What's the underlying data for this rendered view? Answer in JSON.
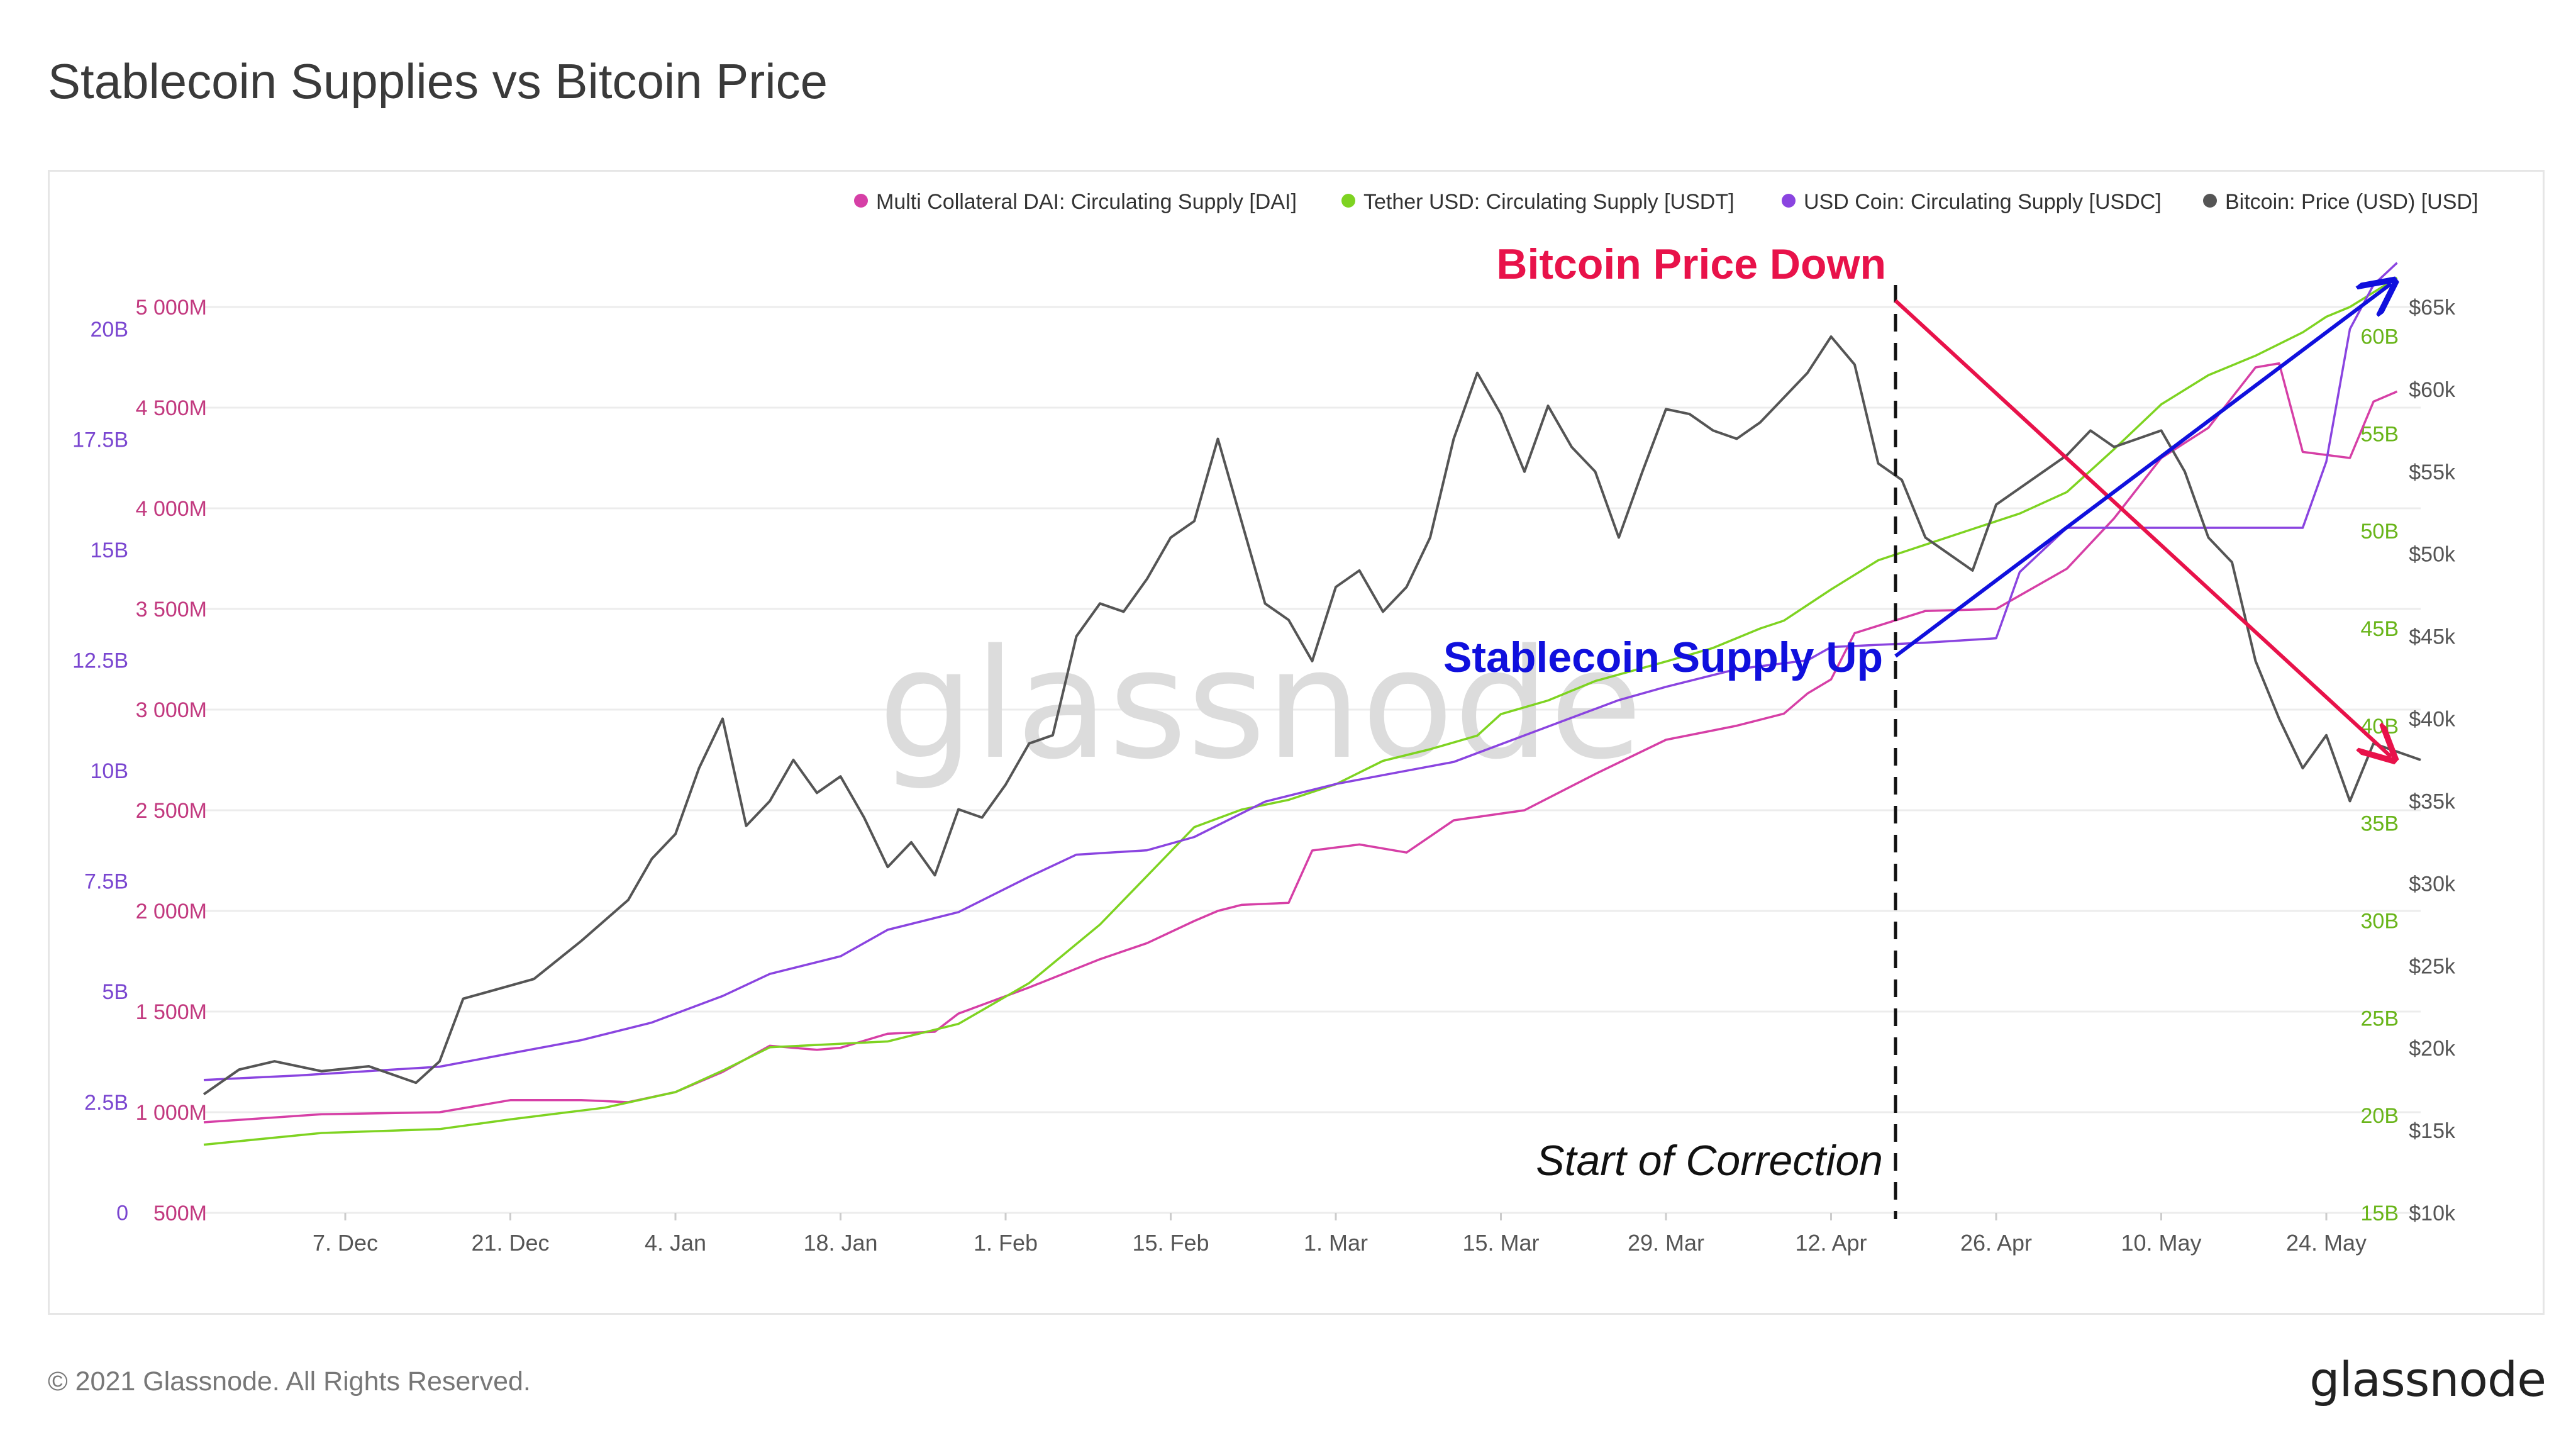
{
  "title": "Stablecoin Supplies vs Bitcoin Price",
  "footer": "© 2021 Glassnode. All Rights Reserved.",
  "brand": "glassnode",
  "watermark": "glassnode",
  "colors": {
    "dai": "#d63fa6",
    "usdt": "#7ed321",
    "usdc": "#8a44e0",
    "btc": "#555555",
    "red_annot": "#e8124a",
    "blue_annot": "#1010dd"
  },
  "annotations": {
    "price_down": "Bitcoin Price Down",
    "supply_up": "Stablecoin Supply Up",
    "correction": "Start of Correction"
  },
  "chart_data": {
    "type": "line",
    "title": "Stablecoin Supplies vs Bitcoin Price",
    "x_range": [
      "2020-11-25",
      "2021-05-27"
    ],
    "x_ticks": [
      "7. Dec",
      "21. Dec",
      "4. Jan",
      "18. Jan",
      "1. Feb",
      "15. Feb",
      "1. Mar",
      "15. Mar",
      "29. Mar",
      "12. Apr",
      "26. Apr",
      "10. May",
      "24. May"
    ],
    "x_tick_days": [
      12,
      26,
      40,
      54,
      68,
      82,
      96,
      110,
      124,
      138,
      152,
      166,
      180
    ],
    "axes": {
      "dai": {
        "ticks": [
          "500M",
          "1 000M",
          "1 500M",
          "2 000M",
          "2 500M",
          "3 000M",
          "3 500M",
          "4 000M",
          "4 500M",
          "5 000M"
        ],
        "range": [
          500,
          5000
        ],
        "unit": "M"
      },
      "usdc": {
        "ticks": [
          "0",
          "2.5B",
          "5B",
          "7.5B",
          "10B",
          "12.5B",
          "15B",
          "17.5B",
          "20B"
        ],
        "range": [
          0,
          20
        ],
        "unit": "B"
      },
      "usdt": {
        "ticks": [
          "15B",
          "20B",
          "25B",
          "30B",
          "35B",
          "40B",
          "45B",
          "50B",
          "55B",
          "60B"
        ],
        "range": [
          15,
          60
        ],
        "unit": "B"
      },
      "btc": {
        "ticks": [
          "$10k",
          "$15k",
          "$20k",
          "$25k",
          "$30k",
          "$35k",
          "$40k",
          "$45k",
          "$50k",
          "$55k",
          "$60k",
          "$65k"
        ],
        "range": [
          10000,
          65000
        ],
        "unit": "USD"
      }
    },
    "legend": [
      {
        "key": "dai",
        "label": "Multi Collateral DAI: Circulating Supply [DAI]"
      },
      {
        "key": "usdt",
        "label": "Tether USD: Circulating Supply [USDT]"
      },
      {
        "key": "usdc",
        "label": "USD Coin: Circulating Supply [USDC]"
      },
      {
        "key": "btc",
        "label": "Bitcoin: Price (USD) [USD]"
      }
    ],
    "series": [
      {
        "name": "Multi Collateral DAI: Circulating Supply [DAI]",
        "axis": "dai",
        "points": [
          [
            0,
            950
          ],
          [
            10,
            990
          ],
          [
            20,
            1000
          ],
          [
            26,
            1060
          ],
          [
            32,
            1060
          ],
          [
            36,
            1050
          ],
          [
            40,
            1100
          ],
          [
            44,
            1200
          ],
          [
            48,
            1330
          ],
          [
            52,
            1310
          ],
          [
            54,
            1320
          ],
          [
            58,
            1390
          ],
          [
            62,
            1400
          ],
          [
            64,
            1490
          ],
          [
            70,
            1620
          ],
          [
            76,
            1760
          ],
          [
            80,
            1840
          ],
          [
            84,
            1950
          ],
          [
            86,
            2000
          ],
          [
            88,
            2030
          ],
          [
            92,
            2040
          ],
          [
            94,
            2300
          ],
          [
            98,
            2330
          ],
          [
            102,
            2290
          ],
          [
            106,
            2450
          ],
          [
            112,
            2500
          ],
          [
            118,
            2680
          ],
          [
            124,
            2850
          ],
          [
            130,
            2920
          ],
          [
            134,
            2980
          ],
          [
            136,
            3080
          ],
          [
            138,
            3150
          ],
          [
            140,
            3380
          ],
          [
            146,
            3490
          ],
          [
            152,
            3500
          ],
          [
            158,
            3700
          ],
          [
            162,
            3950
          ],
          [
            166,
            4250
          ],
          [
            170,
            4400
          ],
          [
            174,
            4700
          ],
          [
            176,
            4720
          ],
          [
            178,
            4280
          ],
          [
            182,
            4250
          ],
          [
            184,
            4530
          ],
          [
            186,
            4580
          ]
        ]
      },
      {
        "name": "Tether USD: Circulating Supply [USDT]",
        "axis": "usdt",
        "points": [
          [
            0,
            18.5
          ],
          [
            10,
            19.1
          ],
          [
            20,
            19.3
          ],
          [
            26,
            19.8
          ],
          [
            34,
            20.4
          ],
          [
            40,
            21.2
          ],
          [
            44,
            22.3
          ],
          [
            48,
            23.5
          ],
          [
            58,
            23.8
          ],
          [
            64,
            24.7
          ],
          [
            70,
            26.8
          ],
          [
            76,
            29.8
          ],
          [
            80,
            32.3
          ],
          [
            84,
            34.8
          ],
          [
            88,
            35.7
          ],
          [
            92,
            36.2
          ],
          [
            96,
            37.0
          ],
          [
            100,
            38.2
          ],
          [
            104,
            38.8
          ],
          [
            108,
            39.5
          ],
          [
            110,
            40.6
          ],
          [
            114,
            41.3
          ],
          [
            118,
            42.3
          ],
          [
            124,
            43.3
          ],
          [
            128,
            44.0
          ],
          [
            132,
            45.0
          ],
          [
            134,
            45.4
          ],
          [
            138,
            47.0
          ],
          [
            142,
            48.5
          ],
          [
            146,
            49.3
          ],
          [
            150,
            50.1
          ],
          [
            154,
            50.9
          ],
          [
            158,
            52.0
          ],
          [
            162,
            54.2
          ],
          [
            166,
            56.5
          ],
          [
            170,
            58.0
          ],
          [
            174,
            59.0
          ],
          [
            178,
            60.2
          ],
          [
            180,
            61.0
          ],
          [
            182,
            61.5
          ],
          [
            186,
            63.0
          ]
        ]
      },
      {
        "name": "USD Coin: Circulating Supply [USDC]",
        "axis": "usdc",
        "points": [
          [
            0,
            3.0
          ],
          [
            8,
            3.1
          ],
          [
            14,
            3.2
          ],
          [
            20,
            3.3
          ],
          [
            26,
            3.6
          ],
          [
            32,
            3.9
          ],
          [
            38,
            4.3
          ],
          [
            44,
            4.9
          ],
          [
            48,
            5.4
          ],
          [
            54,
            5.8
          ],
          [
            58,
            6.4
          ],
          [
            64,
            6.8
          ],
          [
            70,
            7.6
          ],
          [
            74,
            8.1
          ],
          [
            80,
            8.2
          ],
          [
            84,
            8.5
          ],
          [
            90,
            9.3
          ],
          [
            96,
            9.7
          ],
          [
            100,
            9.9
          ],
          [
            106,
            10.2
          ],
          [
            112,
            10.8
          ],
          [
            116,
            11.2
          ],
          [
            120,
            11.6
          ],
          [
            124,
            11.9
          ],
          [
            130,
            12.3
          ],
          [
            136,
            12.5
          ],
          [
            138,
            12.8
          ],
          [
            146,
            12.9
          ],
          [
            152,
            13.0
          ],
          [
            154,
            14.5
          ],
          [
            158,
            15.5
          ],
          [
            166,
            15.5
          ],
          [
            170,
            15.5
          ],
          [
            178,
            15.5
          ],
          [
            180,
            17.0
          ],
          [
            182,
            20.0
          ],
          [
            184,
            21.0
          ],
          [
            186,
            21.5
          ]
        ]
      },
      {
        "name": "Bitcoin: Price (USD) [USD]",
        "axis": "btc",
        "points": [
          [
            0,
            17200
          ],
          [
            3,
            18700
          ],
          [
            6,
            19200
          ],
          [
            10,
            18600
          ],
          [
            14,
            18900
          ],
          [
            18,
            17900
          ],
          [
            20,
            19200
          ],
          [
            22,
            23000
          ],
          [
            26,
            23800
          ],
          [
            28,
            24200
          ],
          [
            32,
            26500
          ],
          [
            36,
            29000
          ],
          [
            38,
            31500
          ],
          [
            40,
            33000
          ],
          [
            42,
            37000
          ],
          [
            44,
            40000
          ],
          [
            46,
            33500
          ],
          [
            48,
            35000
          ],
          [
            50,
            37500
          ],
          [
            52,
            35500
          ],
          [
            54,
            36500
          ],
          [
            56,
            34000
          ],
          [
            58,
            31000
          ],
          [
            60,
            32500
          ],
          [
            62,
            30500
          ],
          [
            64,
            34500
          ],
          [
            66,
            34000
          ],
          [
            68,
            36000
          ],
          [
            70,
            38500
          ],
          [
            72,
            39000
          ],
          [
            74,
            45000
          ],
          [
            76,
            47000
          ],
          [
            78,
            46500
          ],
          [
            80,
            48500
          ],
          [
            82,
            51000
          ],
          [
            84,
            52000
          ],
          [
            86,
            57000
          ],
          [
            88,
            52000
          ],
          [
            90,
            47000
          ],
          [
            92,
            46000
          ],
          [
            94,
            43500
          ],
          [
            96,
            48000
          ],
          [
            98,
            49000
          ],
          [
            100,
            46500
          ],
          [
            102,
            48000
          ],
          [
            104,
            51000
          ],
          [
            106,
            57000
          ],
          [
            108,
            61000
          ],
          [
            110,
            58500
          ],
          [
            112,
            55000
          ],
          [
            114,
            59000
          ],
          [
            116,
            56500
          ],
          [
            118,
            55000
          ],
          [
            120,
            51000
          ],
          [
            122,
            55000
          ],
          [
            124,
            58800
          ],
          [
            126,
            58500
          ],
          [
            128,
            57500
          ],
          [
            130,
            57000
          ],
          [
            132,
            58000
          ],
          [
            134,
            59500
          ],
          [
            136,
            61000
          ],
          [
            138,
            63200
          ],
          [
            140,
            61500
          ],
          [
            142,
            55500
          ],
          [
            144,
            54500
          ],
          [
            146,
            51000
          ],
          [
            148,
            50000
          ],
          [
            150,
            49000
          ],
          [
            152,
            53000
          ],
          [
            154,
            54000
          ],
          [
            156,
            55000
          ],
          [
            158,
            56000
          ],
          [
            160,
            57500
          ],
          [
            162,
            56500
          ],
          [
            164,
            57000
          ],
          [
            166,
            57500
          ],
          [
            168,
            55000
          ],
          [
            170,
            51000
          ],
          [
            172,
            49500
          ],
          [
            174,
            43500
          ],
          [
            176,
            40000
          ],
          [
            178,
            37000
          ],
          [
            180,
            39000
          ],
          [
            182,
            35000
          ],
          [
            184,
            38500
          ],
          [
            186,
            38000
          ],
          [
            188,
            37500
          ]
        ]
      }
    ]
  }
}
